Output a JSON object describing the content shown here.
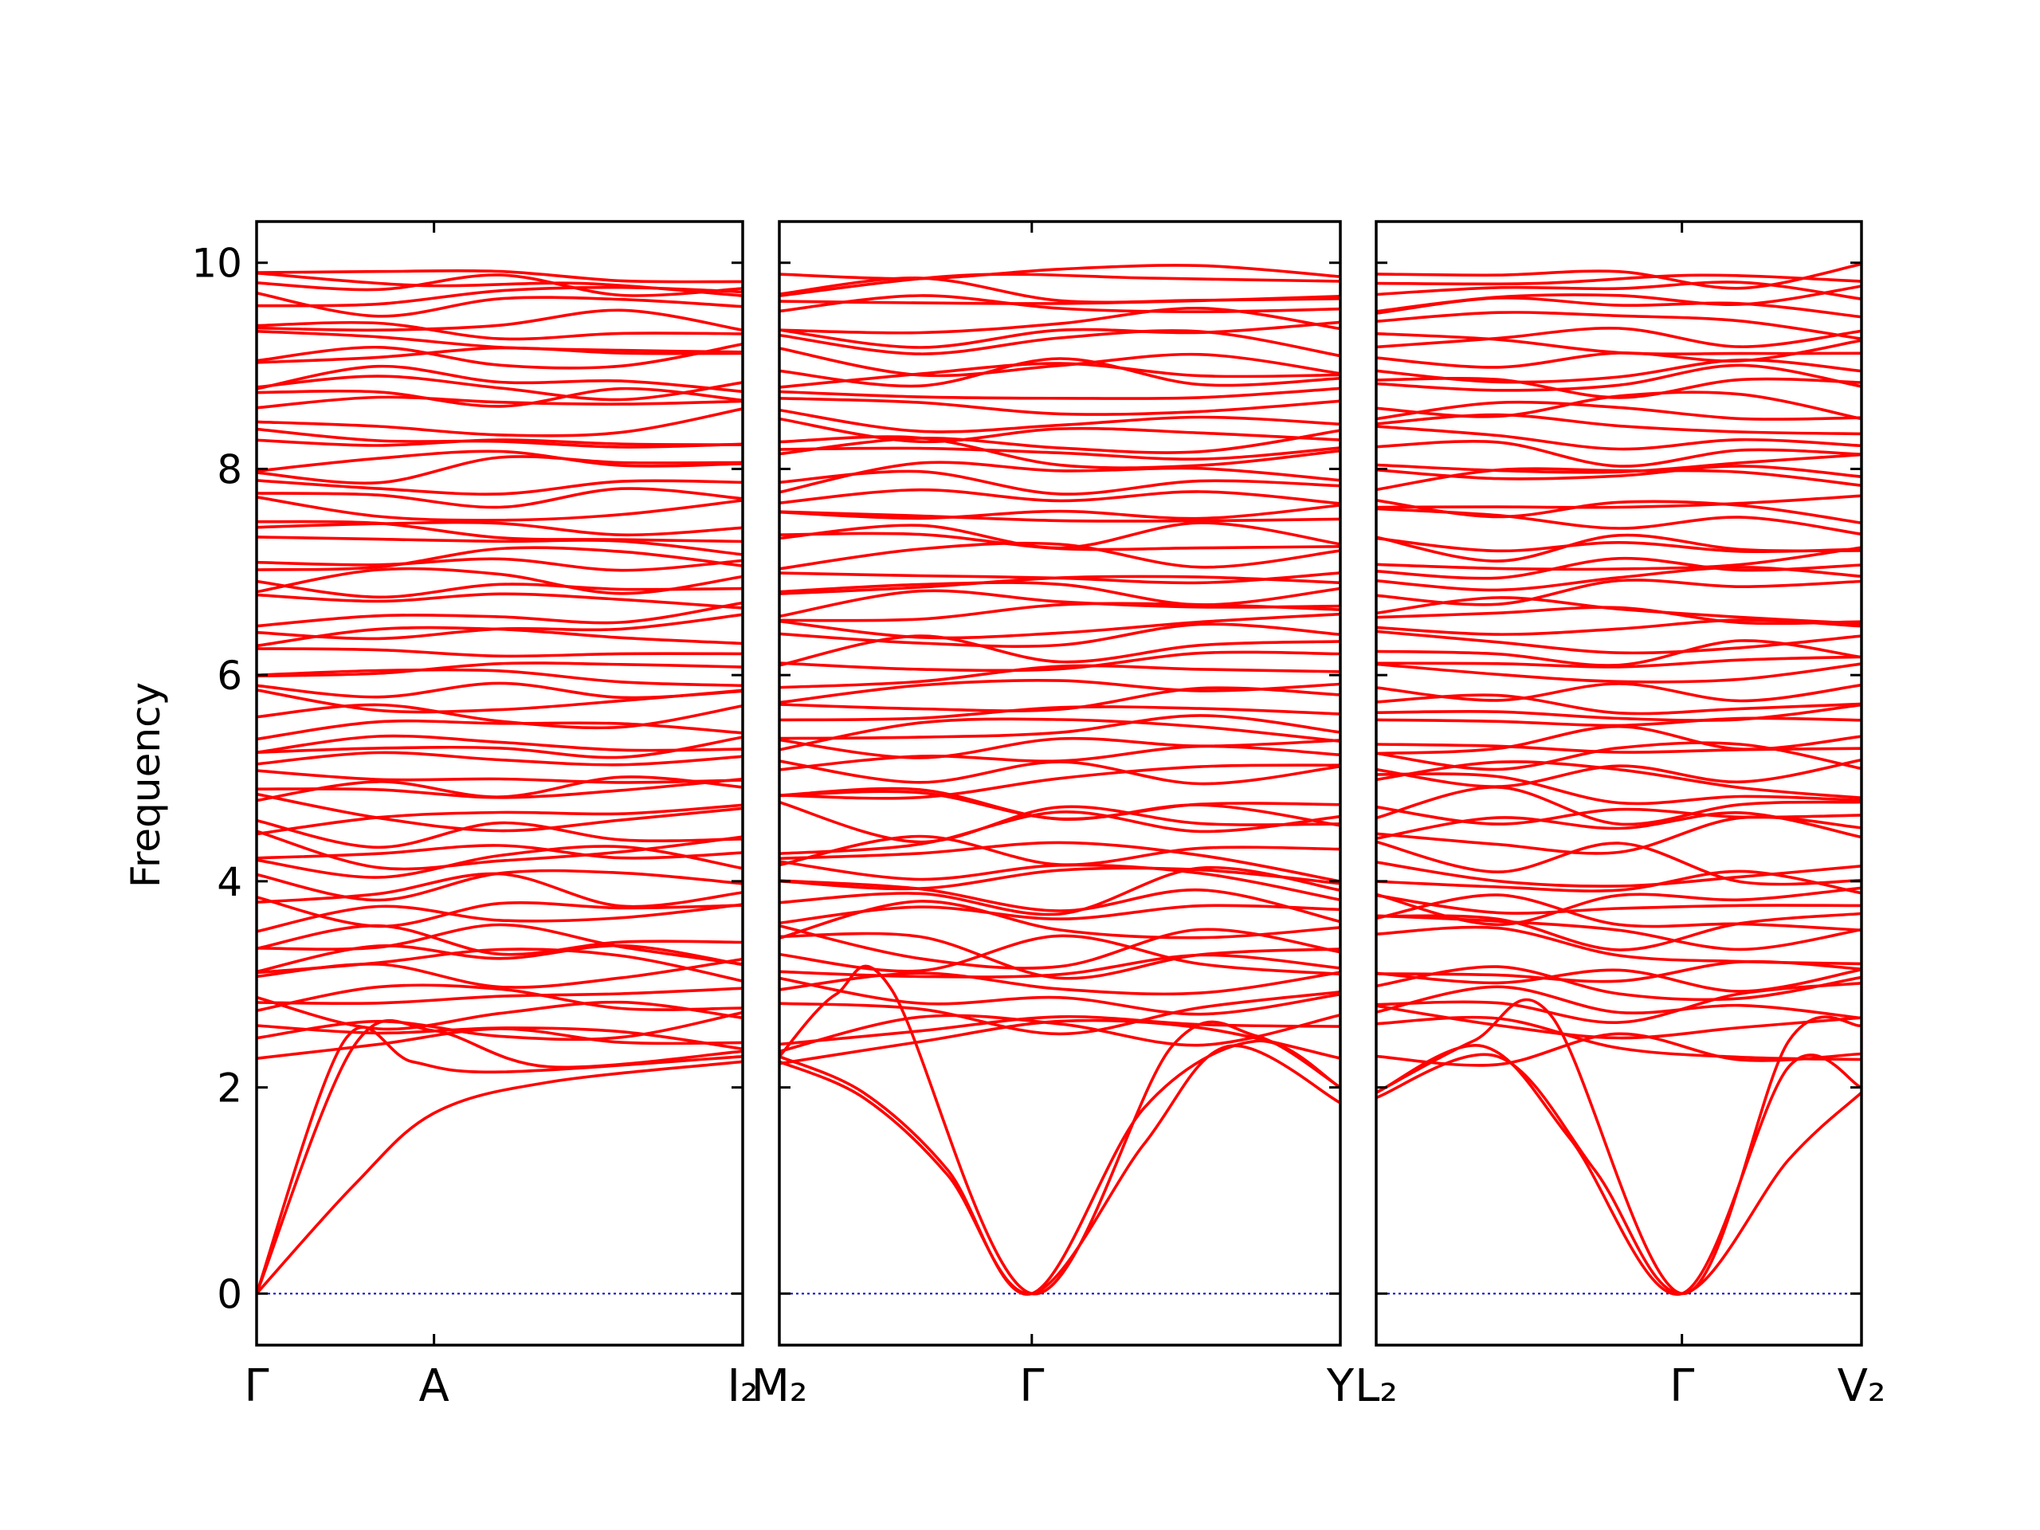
{
  "colors": {
    "band": "#ff0000",
    "zero_line": "#0000cc",
    "frame": "#000000"
  },
  "chart_data": {
    "type": "line",
    "title": "",
    "ylabel": "Frequency",
    "ylim": [
      -0.5,
      10.4
    ],
    "yticks": [
      0,
      2,
      4,
      6,
      8,
      10
    ],
    "grid": false,
    "legend": "none",
    "zero_line": {
      "y": 0,
      "style": "dotted"
    },
    "panels": [
      {
        "q_labels": [
          {
            "pos": 0.0,
            "label": "Γ"
          },
          {
            "pos": 0.365,
            "label": "A"
          },
          {
            "pos": 1.0,
            "label": "I₂"
          }
        ],
        "acoustic": [
          {
            "x": [
              0,
              0.2,
              0.365,
              0.6,
              1.0
            ],
            "y": [
              0,
              2.4,
              2.55,
              2.2,
              2.35
            ]
          },
          {
            "x": [
              0,
              0.18,
              0.32,
              0.5,
              1.0
            ],
            "y": [
              0,
              2.45,
              2.25,
              2.15,
              2.3
            ]
          },
          {
            "x": [
              0,
              0.2,
              0.365,
              0.6,
              1.0
            ],
            "y": [
              0,
              1.05,
              1.75,
              2.05,
              2.25
            ]
          }
        ],
        "optical_levels": {
          "start": 2.35,
          "end": 9.95,
          "count": 66,
          "amplitude": 0.13,
          "top_band": [
            9.9,
            9.78,
            9.8,
            9.68
          ]
        }
      },
      {
        "q_labels": [
          {
            "pos": 0.0,
            "label": "M₂"
          },
          {
            "pos": 0.45,
            "label": "Γ"
          },
          {
            "pos": 1.0,
            "label": "Y"
          }
        ],
        "acoustic": [
          {
            "x": [
              0,
              0.1,
              0.2,
              0.45,
              0.7,
              0.85,
              1.0
            ],
            "y": [
              2.3,
              2.9,
              2.95,
              0,
              2.4,
              2.5,
              2.0
            ]
          },
          {
            "x": [
              0,
              0.15,
              0.3,
              0.45,
              0.65,
              0.85,
              1.0
            ],
            "y": [
              2.3,
              1.95,
              1.2,
              0,
              1.8,
              2.45,
              2.0
            ]
          },
          {
            "x": [
              0,
              0.15,
              0.3,
              0.45,
              0.65,
              0.8,
              1.0
            ],
            "y": [
              2.25,
              1.9,
              1.15,
              0,
              1.45,
              2.4,
              1.85
            ]
          }
        ],
        "optical_levels": {
          "start": 2.4,
          "end": 9.9,
          "count": 66,
          "amplitude": 0.15,
          "top_band": [
            9.68,
            9.88,
            9.85,
            9.82
          ]
        }
      },
      {
        "q_labels": [
          {
            "pos": 0.0,
            "label": "L₂"
          },
          {
            "pos": 0.63,
            "label": "Γ"
          },
          {
            "pos": 1.0,
            "label": "V₂"
          }
        ],
        "acoustic": [
          {
            "x": [
              0,
              0.2,
              0.36,
              0.63,
              0.85,
              1.0
            ],
            "y": [
              1.95,
              2.45,
              2.7,
              0,
              2.45,
              2.6
            ]
          },
          {
            "x": [
              0,
              0.22,
              0.4,
              0.63,
              0.85,
              1.0
            ],
            "y": [
              1.95,
              2.4,
              1.5,
              0,
              2.2,
              2.0
            ]
          },
          {
            "x": [
              0,
              0.25,
              0.45,
              0.63,
              0.85,
              1.0
            ],
            "y": [
              1.9,
              2.3,
              1.2,
              0,
              1.3,
              1.95
            ]
          }
        ],
        "optical_levels": {
          "start": 2.4,
          "end": 9.9,
          "count": 66,
          "amplitude": 0.14,
          "top_band": [
            9.8,
            9.8,
            9.88,
            9.82
          ]
        }
      }
    ]
  }
}
